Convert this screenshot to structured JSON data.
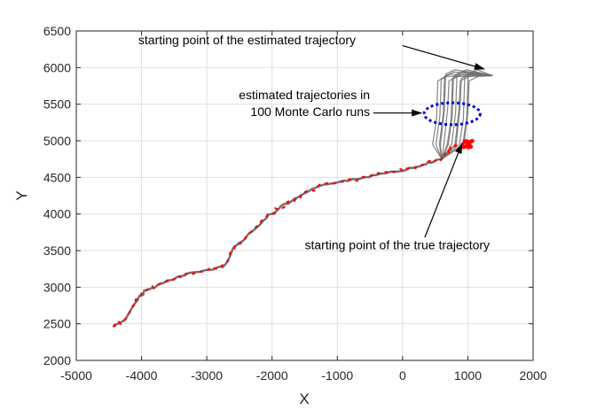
{
  "chart_data": {
    "type": "line",
    "title": "",
    "xlabel": "X",
    "ylabel": "Y",
    "xlim": [
      -5000,
      2000
    ],
    "ylim": [
      2000,
      6500
    ],
    "xticks": [
      -5000,
      -4000,
      -3000,
      -2000,
      -1000,
      0,
      1000,
      2000
    ],
    "yticks": [
      2000,
      2500,
      3000,
      3500,
      4000,
      4500,
      5000,
      5500,
      6000,
      6500
    ],
    "grid": true,
    "colors": {
      "true": "#ff0000",
      "estimated": "#6e6e6e",
      "ellipse": "#0000dd"
    },
    "trajectory_common": [
      [
        -4420,
        2460
      ],
      [
        -4250,
        2560
      ],
      [
        -4100,
        2780
      ],
      [
        -3950,
        2950
      ],
      [
        -3800,
        3000
      ],
      [
        -3600,
        3090
      ],
      [
        -3400,
        3150
      ],
      [
        -3200,
        3200
      ],
      [
        -2900,
        3250
      ],
      [
        -2750,
        3280
      ],
      [
        -2600,
        3520
      ],
      [
        -2400,
        3680
      ],
      [
        -2200,
        3850
      ],
      [
        -2050,
        3980
      ],
      [
        -1850,
        4100
      ],
      [
        -1650,
        4200
      ],
      [
        -1450,
        4300
      ],
      [
        -1200,
        4400
      ],
      [
        -950,
        4450
      ],
      [
        -700,
        4470
      ],
      [
        -450,
        4530
      ],
      [
        -250,
        4570
      ],
      [
        0,
        4600
      ],
      [
        200,
        4640
      ],
      [
        400,
        4700
      ],
      [
        600,
        4750
      ]
    ],
    "true_trajectory_end": [
      [
        700,
        4840
      ],
      [
        800,
        4920
      ],
      [
        900,
        4960
      ],
      [
        960,
        4990
      ],
      [
        1000,
        4950
      ],
      [
        1050,
        4930
      ]
    ],
    "estimated_fan_x": [
      520,
      560,
      600,
      640,
      680,
      720,
      760,
      800,
      840,
      880,
      920,
      960,
      1000
    ],
    "estimated_start": [
      1380,
      5890
    ],
    "ellipse": {
      "cx": 760,
      "cy": 5370,
      "rx": 430,
      "ry": 150
    },
    "annotations": [
      {
        "id": "start-estimated",
        "text": "starting point of the estimated trajectory",
        "tx": -4050,
        "ty": 6320,
        "anchor": "start",
        "arrow_from": [
          0,
          6300
        ],
        "arrow_to": [
          1250,
          5980
        ]
      },
      {
        "id": "estimated-runs-1",
        "text": "estimated trajectories in",
        "tx": -500,
        "ty": 5570,
        "anchor": "end"
      },
      {
        "id": "estimated-runs-2",
        "text": "100 Monte Carlo runs",
        "tx": -500,
        "ty": 5340,
        "anchor": "end",
        "arrow_from": [
          -450,
          5380
        ],
        "arrow_to": [
          290,
          5380
        ]
      },
      {
        "id": "start-true",
        "text": "starting point of the true trajectory",
        "tx": -1500,
        "ty": 3520,
        "anchor": "start",
        "arrow_from": [
          340,
          3680
        ],
        "arrow_to": [
          910,
          4960
        ]
      }
    ]
  }
}
